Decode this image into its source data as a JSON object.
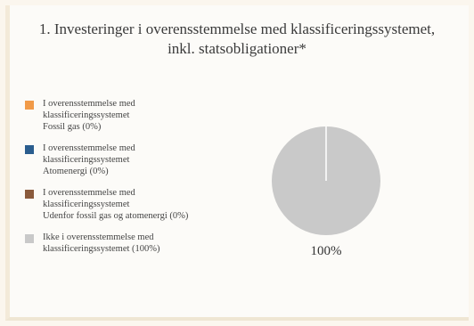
{
  "chart_data": {
    "type": "pie",
    "title": "1. Investeringer i overensstemmelse med klassificeringssystemet,\ninkl. statsobligationer*",
    "series": [
      {
        "name": "I overensstemmelse med\nklassificeringssystemet\nFossil gas (0%)",
        "value": 0,
        "color": "#f19a48"
      },
      {
        "name": "I overensstemmelse med\nklassificeringssystemet\nAtomenergi (0%)",
        "value": 0,
        "color": "#2a5d8e"
      },
      {
        "name": "I overensstemmelse med\nklassificeringssystemet\nUdenfor fossil gas og atomenergi (0%)",
        "value": 0,
        "color": "#8a5a3c"
      },
      {
        "name": "Ikke i overensstemmelse med\nklassificeringssystemet (100%)",
        "value": 100,
        "color": "#c9c9c9"
      }
    ],
    "data_labels": [
      "100%"
    ],
    "legend_position": "left"
  }
}
